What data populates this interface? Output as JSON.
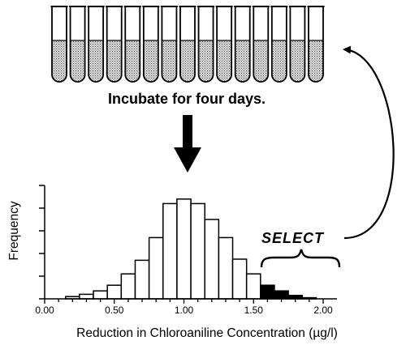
{
  "instruction": "Incubate for four days.",
  "select_label": "SELECT",
  "tube_count": 15,
  "chart_data": {
    "type": "bar",
    "xlabel": "Reduction in Chloroaniline Concentration (µg/l)",
    "ylabel": "Frequency",
    "xlim": [
      0.0,
      2.0
    ],
    "ylim": [
      0,
      5
    ],
    "x_ticks": [
      "0.00",
      "0.50",
      "1.00",
      "1.50",
      "2.00"
    ],
    "bin_width": 0.1,
    "bins": [
      {
        "x": 0.2,
        "value": 0.1
      },
      {
        "x": 0.3,
        "value": 0.2
      },
      {
        "x": 0.4,
        "value": 0.35
      },
      {
        "x": 0.5,
        "value": 0.6
      },
      {
        "x": 0.6,
        "value": 1.1
      },
      {
        "x": 0.7,
        "value": 1.7
      },
      {
        "x": 0.8,
        "value": 2.7
      },
      {
        "x": 0.9,
        "value": 4.2
      },
      {
        "x": 1.0,
        "value": 4.4
      },
      {
        "x": 1.1,
        "value": 4.2
      },
      {
        "x": 1.2,
        "value": 3.5
      },
      {
        "x": 1.3,
        "value": 2.7
      },
      {
        "x": 1.4,
        "value": 1.75
      },
      {
        "x": 1.5,
        "value": 1.1
      },
      {
        "x": 1.6,
        "value": 0.6,
        "selected": true
      },
      {
        "x": 1.7,
        "value": 0.35,
        "selected": true
      },
      {
        "x": 1.8,
        "value": 0.15,
        "selected": true
      },
      {
        "x": 1.9,
        "value": 0.05,
        "selected": true
      }
    ],
    "colors": {
      "bar": "#ffffff",
      "selected_bar": "#000000",
      "outline": "#000000"
    }
  },
  "colors": {
    "ink": "#000000",
    "liquid": "#c8c8c8"
  }
}
